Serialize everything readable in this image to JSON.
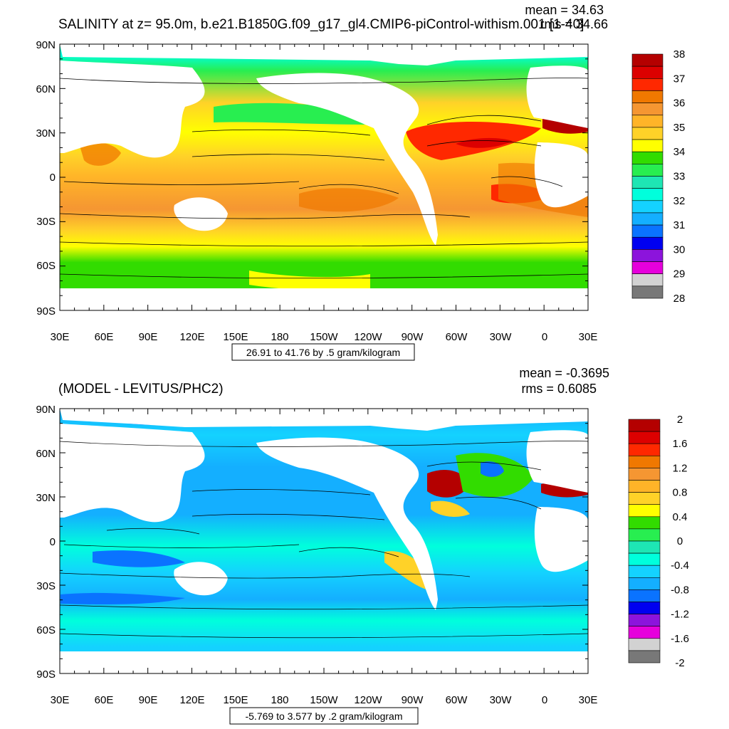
{
  "chart_data": [
    {
      "type": "heatmap",
      "title": "SALINITY at z=  95.0m, b.e21.B1850G.f09_g17_gl4.CMIP6-piControl-withism.001 [1-40]",
      "stats": {
        "mean": "mean = 34.63",
        "rms": "rms = 34.66"
      },
      "x_ticks": [
        "30E",
        "60E",
        "90E",
        "120E",
        "150E",
        "180",
        "150W",
        "120W",
        "90W",
        "60W",
        "30W",
        "0",
        "30E"
      ],
      "y_ticks": [
        "90N",
        "60N",
        "30N",
        "0",
        "30S",
        "60S",
        "90S"
      ],
      "range_label": "26.91 to 41.76 by .5 gram/kilogram",
      "colorbar": {
        "labels": [
          "38",
          "37",
          "36",
          "35",
          "34",
          "33",
          "32",
          "31",
          "30",
          "29",
          "28"
        ],
        "colors": [
          "#b40000",
          "#dc0000",
          "#ff2800",
          "#f07800",
          "#f59632",
          "#ffb428",
          "#ffd228",
          "#ffff00",
          "#32dc00",
          "#28ee50",
          "#1ee6b4",
          "#00ffdc",
          "#14d2ff",
          "#14afff",
          "#0a73ff",
          "#0000f0",
          "#8c14dc",
          "#e600dc",
          "#d2d2d2",
          "#787878"
        ]
      }
    },
    {
      "type": "heatmap",
      "title": "(MODEL - LEVITUS/PHC2)",
      "stats": {
        "mean": "mean = -0.3695",
        "rms": "rms = 0.6085"
      },
      "x_ticks": [
        "30E",
        "60E",
        "90E",
        "120E",
        "150E",
        "180",
        "150W",
        "120W",
        "90W",
        "60W",
        "30W",
        "0",
        "30E"
      ],
      "y_ticks": [
        "90N",
        "60N",
        "30N",
        "0",
        "30S",
        "60S",
        "90S"
      ],
      "range_label": "-5.769 to 3.577 by .2 gram/kilogram",
      "colorbar": {
        "labels": [
          "2",
          "1.6",
          "1.2",
          "0.8",
          "0.4",
          "0",
          "-0.4",
          "-0.8",
          "-1.2",
          "-1.6",
          "-2"
        ],
        "colors": [
          "#b40000",
          "#dc0000",
          "#ff2800",
          "#f07800",
          "#f59632",
          "#ffb428",
          "#ffd228",
          "#ffff00",
          "#32dc00",
          "#28ee50",
          "#1ee6b4",
          "#00ffdc",
          "#14d2ff",
          "#14afff",
          "#0a73ff",
          "#0000f0",
          "#8c14dc",
          "#e600dc",
          "#d2d2d2",
          "#787878"
        ]
      }
    }
  ]
}
